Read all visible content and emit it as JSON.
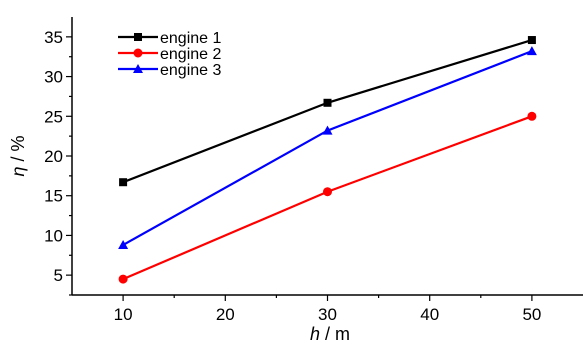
{
  "chart_data": {
    "type": "line",
    "xlabel": {
      "var": "h",
      "unit": " / m"
    },
    "ylabel": {
      "var": "η",
      "unit": " / %"
    },
    "xlim": [
      5,
      55
    ],
    "ylim": [
      2.5,
      37.5
    ],
    "xticks": [
      10,
      20,
      30,
      40,
      50
    ],
    "yticks": [
      5,
      10,
      15,
      20,
      25,
      30,
      35
    ],
    "legend_position": "top-left",
    "x": [
      10,
      30,
      50
    ],
    "series": [
      {
        "name": "engine 1",
        "color": "#000000",
        "marker": "square",
        "values": [
          16.7,
          26.7,
          34.6
        ]
      },
      {
        "name": "engine 2",
        "color": "#ff0000",
        "marker": "circle",
        "values": [
          4.5,
          15.5,
          25.0
        ]
      },
      {
        "name": "engine 3",
        "color": "#0000ff",
        "marker": "triangle",
        "values": [
          8.8,
          23.2,
          33.2
        ]
      }
    ]
  }
}
